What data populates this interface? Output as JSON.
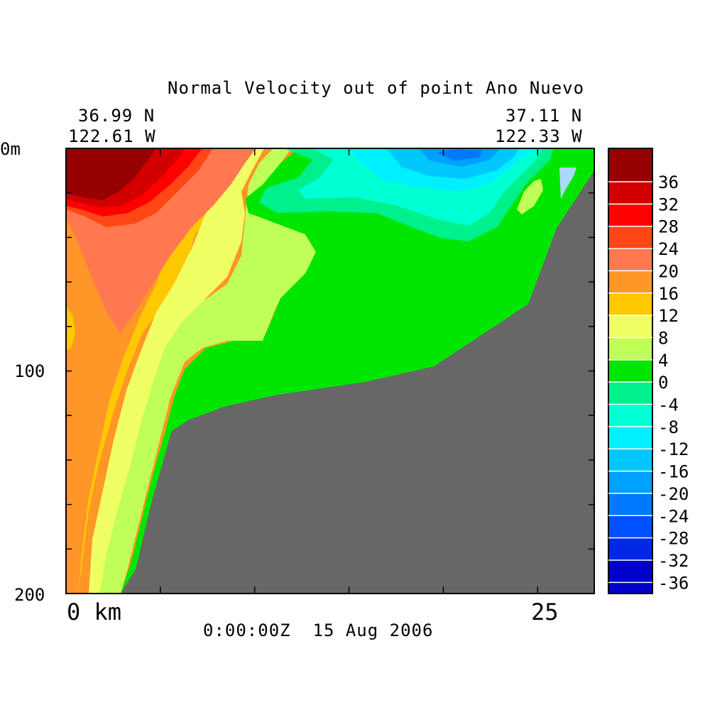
{
  "title": "Normal Velocity out of point Ano Nuevo",
  "left_corner": {
    "lat": "36.99 N",
    "lon": "122.61 W"
  },
  "right_corner": {
    "lat": "37.11 N",
    "lon": "122.33 W"
  },
  "timestamp": "0:00:00Z  15 Aug 2006",
  "y_tick_labels": [
    "0m",
    "100",
    "200"
  ],
  "x_tick_labels": [
    "0 km",
    "25"
  ],
  "colors": {
    "terrain": "#676767",
    "legend_scale": [
      "#0000c8",
      "#0028e6",
      "#0050ff",
      "#0078ff",
      "#00a0ff",
      "#00c8ff",
      "#00f0ff",
      "#00ffd2",
      "#00f08c",
      "#00e600",
      "#c0ff5a",
      "#f0ff64",
      "#ffc800",
      "#ff9628",
      "#ff7850",
      "#ff4614",
      "#ff0000",
      "#d20000",
      "#960000"
    ]
  },
  "chart_data": {
    "type": "heatmap",
    "title": "Normal Velocity out of point Ano Nuevo",
    "xlabel": "km",
    "ylabel": "m",
    "xlim": [
      0,
      28
    ],
    "ylim": [
      0,
      200
    ],
    "y_inverted": true,
    "colorbar": {
      "levels": [
        -36,
        -32,
        -28,
        -24,
        -20,
        -16,
        -12,
        -8,
        -4,
        0,
        4,
        8,
        12,
        16,
        20,
        24,
        28,
        32,
        36
      ],
      "tick_labels": [
        "36",
        "32",
        "28",
        "24",
        "20",
        "16",
        "12",
        "8",
        "4",
        "0",
        "-4",
        "-8",
        "-12",
        "-16",
        "-20",
        "-24",
        "-28",
        "-32",
        "-36"
      ]
    },
    "bottom_profile": {
      "x_km": [
        2.9,
        3.7,
        4.5,
        5.6,
        6.5,
        8.4,
        11.0,
        15.8,
        19.5,
        24.5,
        26.0,
        28.0
      ],
      "depth_m": [
        200,
        189,
        160,
        127,
        122,
        116,
        111,
        105,
        98,
        70,
        36,
        10
      ]
    }
  }
}
